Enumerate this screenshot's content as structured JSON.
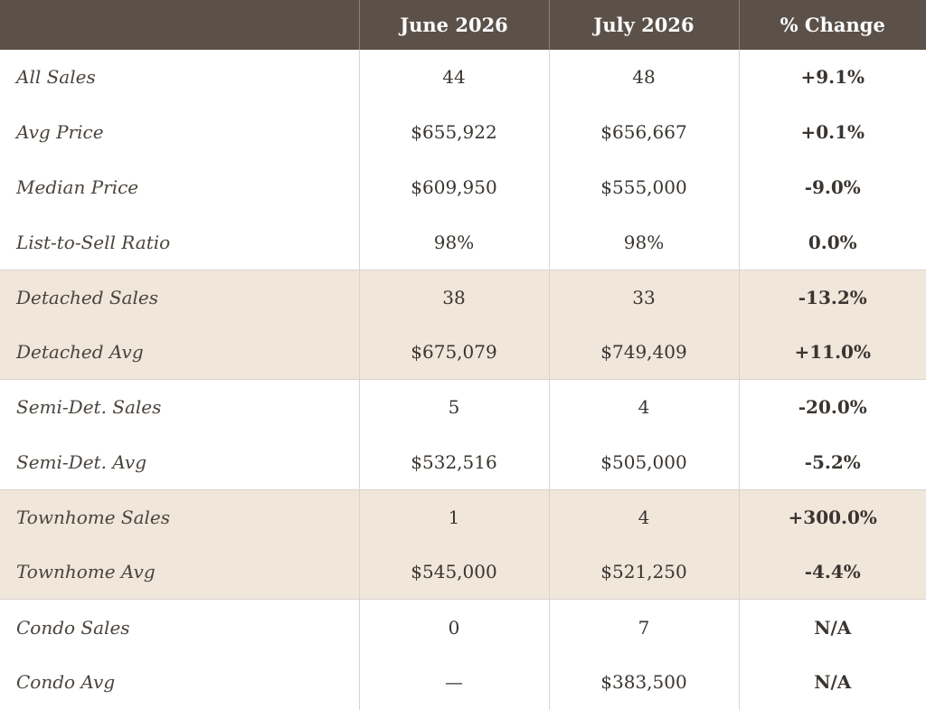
{
  "chart_data": {
    "type": "table",
    "columns": [
      "",
      "June 2026",
      "July 2026",
      "% Change"
    ],
    "rows": [
      {
        "label": "All Sales",
        "june": "44",
        "july": "48",
        "change": "+9.1%",
        "trend": "pos",
        "shaded": false,
        "group_start": false
      },
      {
        "label": "Avg Price",
        "june": "$655,922",
        "july": "$656,667",
        "change": "+0.1%",
        "trend": "pos",
        "shaded": false,
        "group_start": false
      },
      {
        "label": "Median Price",
        "june": "$609,950",
        "july": "$555,000",
        "change": "-9.0%",
        "trend": "neg",
        "shaded": false,
        "group_start": false
      },
      {
        "label": "List-to-Sell Ratio",
        "june": "98%",
        "july": "98%",
        "change": "0.0%",
        "trend": "neutral",
        "shaded": false,
        "group_start": false
      },
      {
        "label": "Detached Sales",
        "june": "38",
        "july": "33",
        "change": "-13.2%",
        "trend": "neg",
        "shaded": true,
        "group_start": true
      },
      {
        "label": "Detached Avg",
        "june": "$675,079",
        "july": "$749,409",
        "change": "+11.0%",
        "trend": "pos",
        "shaded": true,
        "group_start": false
      },
      {
        "label": "Semi-Det. Sales",
        "june": "5",
        "july": "4",
        "change": "-20.0%",
        "trend": "neg",
        "shaded": false,
        "group_start": true
      },
      {
        "label": "Semi-Det. Avg",
        "june": "$532,516",
        "july": "$505,000",
        "change": "-5.2%",
        "trend": "neg",
        "shaded": false,
        "group_start": false
      },
      {
        "label": "Townhome Sales",
        "june": "1",
        "july": "4",
        "change": "+300.0%",
        "trend": "pos",
        "shaded": true,
        "group_start": true
      },
      {
        "label": "Townhome Avg",
        "june": "$545,000",
        "july": "$521,250",
        "change": "-4.4%",
        "trend": "neg",
        "shaded": true,
        "group_start": false
      },
      {
        "label": "Condo Sales",
        "june": "0",
        "july": "7",
        "change": "N/A",
        "trend": "neutral",
        "shaded": false,
        "group_start": true
      },
      {
        "label": "Condo Avg",
        "june": "—",
        "july": "$383,500",
        "change": "N/A",
        "trend": "neutral",
        "shaded": false,
        "group_start": false
      }
    ]
  }
}
